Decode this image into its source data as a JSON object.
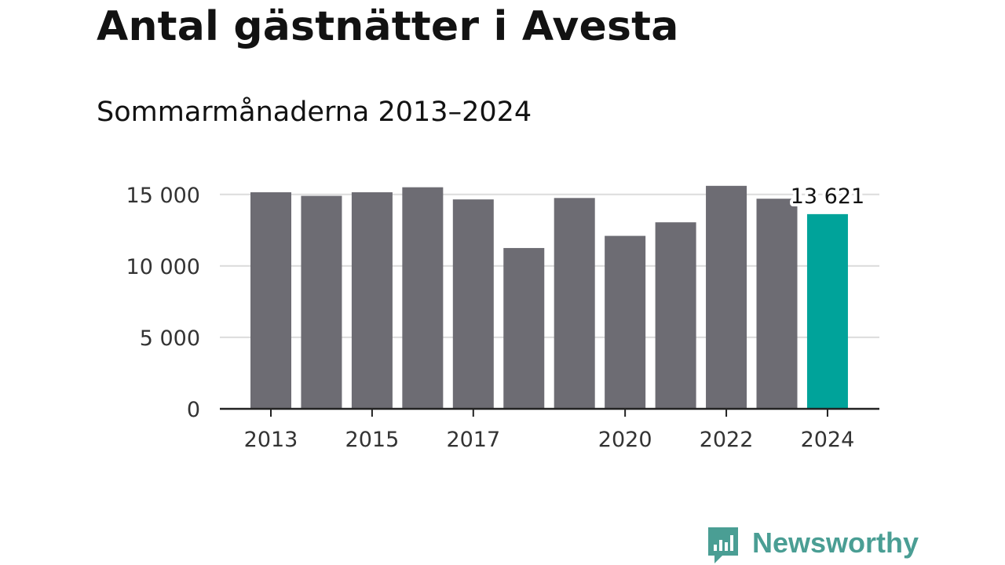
{
  "chart_data": {
    "type": "bar",
    "title": "Antal gästnätter i Avesta",
    "subtitle": "Sommarmånaderna 2013–2024",
    "xlabel": "",
    "ylabel": "",
    "categories": [
      "2013",
      "2014",
      "2015",
      "2016",
      "2017",
      "2018",
      "2019",
      "2020",
      "2021",
      "2022",
      "2023",
      "2024"
    ],
    "x_tick_labels": [
      "2013",
      "2015",
      "2017",
      "2020",
      "2022",
      "2024"
    ],
    "values": [
      15150,
      14900,
      15150,
      15500,
      14650,
      11250,
      14750,
      12100,
      13050,
      15600,
      14700,
      13621
    ],
    "ylim": [
      0,
      15700
    ],
    "y_ticks": [
      0,
      5000,
      10000,
      15000
    ],
    "y_tick_labels": [
      "0",
      "5 000",
      "10 000",
      "15 000"
    ],
    "highlight_index": 11,
    "highlight_label": "13 621",
    "colors": {
      "bar": "#6d6c73",
      "highlight": "#00a39a",
      "grid": "#dcdcdc",
      "axis": "#222222",
      "text": "#121212"
    },
    "grid": true,
    "legend": "none"
  },
  "brand": {
    "name": "Newsworthy",
    "icon": "newsworthy-logo-icon",
    "color": "#4a9e94"
  }
}
